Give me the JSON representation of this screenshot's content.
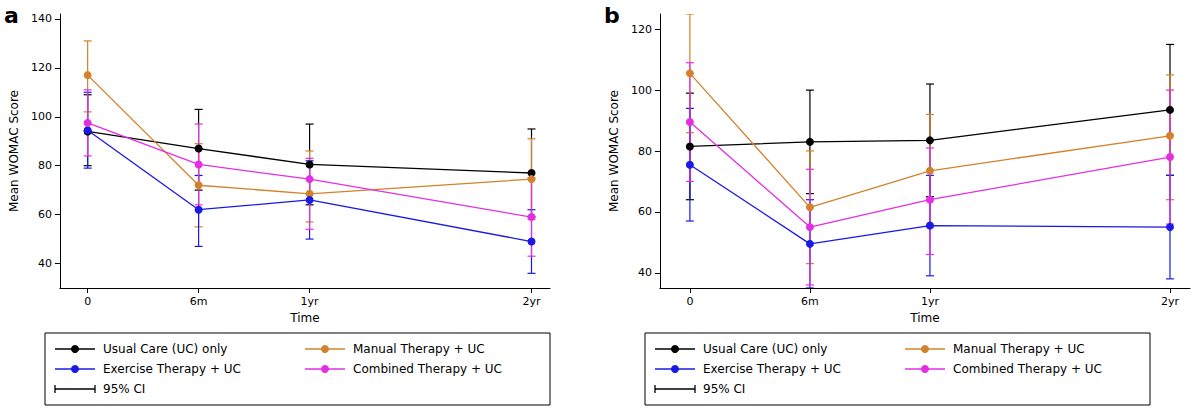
{
  "chart_data": [
    {
      "type": "line",
      "label": "a",
      "x_label": "Time",
      "y_label": "Mean WOMAC Score",
      "x": [
        0,
        6,
        12,
        24
      ],
      "xlim": [
        -1.5,
        25
      ],
      "xticks": [
        0,
        {
          "value": 6,
          "label": "6m"
        },
        {
          "value": 12,
          "label": "1yr"
        },
        {
          "value": 24,
          "label": "2yr"
        }
      ],
      "ylim": [
        30,
        142
      ],
      "yticks": [
        40,
        60,
        80,
        100,
        120,
        140
      ],
      "grid": false,
      "legend": "bottom",
      "marker": "circle",
      "ci_label": "95% CI",
      "series": [
        {
          "name": "Usual Care (UC) only",
          "color": "#000000",
          "values": [
            94,
            87,
            80.5,
            77
          ],
          "ci": [
            [
              80,
              109
            ],
            [
              70,
              103
            ],
            [
              64,
              97
            ],
            [
              59,
              95
            ]
          ]
        },
        {
          "name": "Manual Therapy + UC",
          "color": "#d2822d",
          "values": [
            117,
            72,
            68.5,
            74.5
          ],
          "ci": [
            [
              102,
              131
            ],
            [
              55,
              89
            ],
            [
              57,
              86
            ],
            [
              58,
              91
            ]
          ]
        },
        {
          "name": "Exercise Therapy + UC",
          "color": "#1a1ae6",
          "values": [
            94.5,
            62,
            66,
            49
          ],
          "ci": [
            [
              79,
              110
            ],
            [
              47,
              76
            ],
            [
              50,
              82
            ],
            [
              36,
              62
            ]
          ]
        },
        {
          "name": "Combined Therapy + UC",
          "color": "#e42ee4",
          "values": [
            97.5,
            80.5,
            74.5,
            59
          ],
          "ci": [
            [
              84,
              111
            ],
            [
              64,
              97
            ],
            [
              54,
              83
            ],
            [
              43,
              75
            ]
          ]
        }
      ]
    },
    {
      "type": "line",
      "label": "b",
      "x_label": "Time",
      "y_label": "Mean WOMAC Score",
      "x": [
        0,
        6,
        12,
        24
      ],
      "xlim": [
        -1.5,
        25
      ],
      "xticks": [
        0,
        {
          "value": 6,
          "label": "6m"
        },
        {
          "value": 12,
          "label": "1yr"
        },
        {
          "value": 24,
          "label": "2yr"
        }
      ],
      "ylim": [
        35,
        125
      ],
      "yticks": [
        40,
        60,
        80,
        100,
        120
      ],
      "grid": false,
      "legend": "bottom",
      "marker": "circle",
      "ci_label": "95% CI",
      "series": [
        {
          "name": "Usual Care (UC) only",
          "color": "#000000",
          "values": [
            81.5,
            83,
            83.5,
            93.5
          ],
          "ci": [
            [
              64,
              99
            ],
            [
              66,
              100
            ],
            [
              65,
              102
            ],
            [
              72,
              115
            ]
          ]
        },
        {
          "name": "Manual Therapy + UC",
          "color": "#d2822d",
          "values": [
            105.5,
            61.5,
            73.5,
            85
          ],
          "ci": [
            [
              86,
              125
            ],
            [
              43,
              80
            ],
            [
              55,
              92
            ],
            [
              64,
              105
            ]
          ]
        },
        {
          "name": "Exercise Therapy + UC",
          "color": "#1a1ae6",
          "values": [
            75.5,
            49.5,
            55.5,
            55
          ],
          "ci": [
            [
              57,
              94
            ],
            [
              35,
              64
            ],
            [
              39,
              72
            ],
            [
              38,
              72
            ]
          ]
        },
        {
          "name": "Combined Therapy + UC",
          "color": "#e42ee4",
          "values": [
            89.5,
            55,
            64,
            78
          ],
          "ci": [
            [
              70,
              109
            ],
            [
              36,
              74
            ],
            [
              46,
              81
            ],
            [
              56,
              100
            ]
          ]
        }
      ]
    }
  ]
}
